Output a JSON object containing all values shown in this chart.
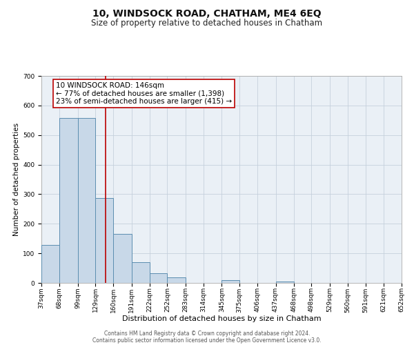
{
  "title": "10, WINDSOCK ROAD, CHATHAM, ME4 6EQ",
  "subtitle": "Size of property relative to detached houses in Chatham",
  "xlabel": "Distribution of detached houses by size in Chatham",
  "ylabel": "Number of detached properties",
  "footer_line1": "Contains HM Land Registry data © Crown copyright and database right 2024.",
  "footer_line2": "Contains public sector information licensed under the Open Government Licence v3.0.",
  "annotation_title": "10 WINDSOCK ROAD: 146sqm",
  "annotation_line1": "← 77% of detached houses are smaller (1,398)",
  "annotation_line2": "23% of semi-detached houses are larger (415) →",
  "bin_edges": [
    37,
    68,
    99,
    129,
    160,
    191,
    222,
    252,
    283,
    314,
    345,
    375,
    406,
    437,
    468,
    498,
    529,
    560,
    591,
    621,
    652
  ],
  "bar_heights": [
    128,
    557,
    557,
    286,
    166,
    70,
    32,
    19,
    0,
    0,
    10,
    0,
    0,
    5,
    0,
    0,
    0,
    0,
    0,
    0
  ],
  "bar_color": "#c8d8e8",
  "bar_edge_color": "#5b8db0",
  "property_line_x": 146,
  "property_line_color": "#bb0000",
  "annotation_box_color": "#ffffff",
  "annotation_box_edge": "#bb0000",
  "background_color": "#eaf0f6",
  "ylim": [
    0,
    700
  ],
  "yticks": [
    0,
    100,
    200,
    300,
    400,
    500,
    600,
    700
  ],
  "grid_color": "#c5d0dc",
  "title_fontsize": 10,
  "subtitle_fontsize": 8.5,
  "xlabel_fontsize": 8,
  "ylabel_fontsize": 7.5,
  "tick_fontsize": 6.5,
  "annotation_fontsize": 7.5,
  "footer_fontsize": 5.5
}
